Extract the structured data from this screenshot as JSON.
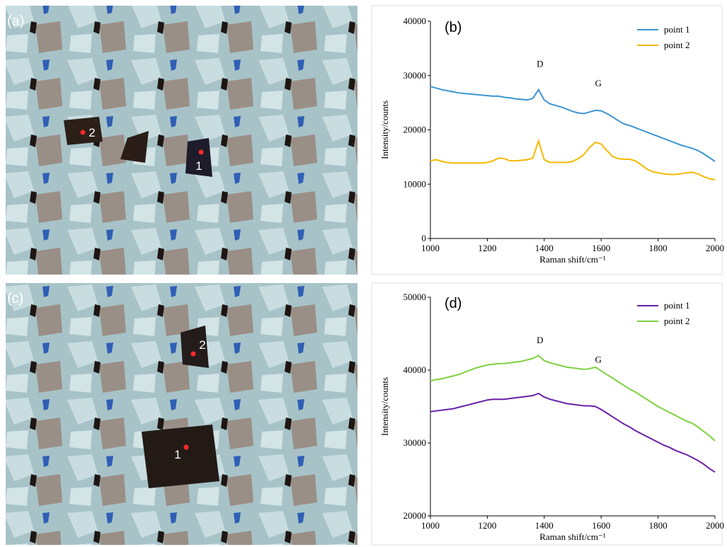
{
  "images": [
    {
      "label": "(a)",
      "points": [
        "1",
        "2"
      ]
    },
    {
      "label": "(c)",
      "points": [
        "1",
        "2"
      ]
    }
  ],
  "chart_data": [
    {
      "type": "line",
      "panel": "(b)",
      "xlabel": "Raman shift/cm⁻¹",
      "ylabel": "Intensity/counts",
      "annotations": [
        "D",
        "G"
      ],
      "legend": "upper right",
      "xlim": [
        1000,
        2000
      ],
      "xticks": [
        1000,
        1200,
        1400,
        1600,
        1800,
        2000
      ],
      "ylim": [
        0,
        40000
      ],
      "yticks": [
        0,
        10000,
        20000,
        30000,
        40000
      ],
      "x": [
        1000,
        1020,
        1040,
        1060,
        1080,
        1100,
        1120,
        1140,
        1160,
        1180,
        1200,
        1220,
        1240,
        1260,
        1280,
        1300,
        1320,
        1340,
        1360,
        1380,
        1400,
        1420,
        1440,
        1460,
        1480,
        1500,
        1520,
        1540,
        1560,
        1580,
        1600,
        1620,
        1640,
        1660,
        1680,
        1700,
        1720,
        1740,
        1760,
        1780,
        1800,
        1820,
        1840,
        1860,
        1880,
        1900,
        1920,
        1940,
        1960,
        1980,
        2000
      ],
      "series": [
        {
          "name": "point 1",
          "color": "#3d95d0",
          "values": [
            28000,
            27700,
            27400,
            27200,
            27000,
            26800,
            26700,
            26600,
            26500,
            26400,
            26300,
            26200,
            26200,
            26000,
            25900,
            25700,
            25600,
            25500,
            25800,
            27400,
            25500,
            24800,
            24500,
            24200,
            23800,
            23400,
            23100,
            23000,
            23300,
            23600,
            23500,
            23000,
            22400,
            21700,
            21100,
            20800,
            20400,
            20000,
            19600,
            19200,
            18800,
            18400,
            18000,
            17600,
            17200,
            16900,
            16600,
            16200,
            15600,
            14900,
            14200
          ]
        },
        {
          "name": "point 2",
          "color": "#f5b800",
          "values": [
            14300,
            14500,
            14200,
            14000,
            13900,
            13900,
            13900,
            13900,
            13900,
            13900,
            14000,
            14300,
            14800,
            14700,
            14300,
            14300,
            14400,
            14500,
            14800,
            18000,
            14500,
            14000,
            14000,
            14000,
            14000,
            14200,
            14700,
            15500,
            16800,
            17700,
            17400,
            16200,
            15100,
            14700,
            14600,
            14600,
            14300,
            13600,
            12800,
            12300,
            12100,
            11900,
            11800,
            11800,
            11900,
            12100,
            12200,
            11900,
            11400,
            11000,
            10800
          ]
        }
      ]
    },
    {
      "type": "line",
      "panel": "(d)",
      "xlabel": "Raman shift/cm⁻¹",
      "ylabel": "Intensity/counts",
      "annotations": [
        "D",
        "G"
      ],
      "legend": "upper right",
      "xlim": [
        1000,
        2000
      ],
      "xticks": [
        1000,
        1200,
        1400,
        1600,
        1800,
        2000
      ],
      "ylim": [
        20000,
        50000
      ],
      "yticks": [
        20000,
        30000,
        40000,
        50000
      ],
      "x": [
        1000,
        1020,
        1040,
        1060,
        1080,
        1100,
        1120,
        1140,
        1160,
        1180,
        1200,
        1220,
        1240,
        1260,
        1280,
        1300,
        1320,
        1340,
        1360,
        1380,
        1400,
        1420,
        1440,
        1460,
        1480,
        1500,
        1520,
        1540,
        1560,
        1580,
        1600,
        1620,
        1640,
        1660,
        1680,
        1700,
        1720,
        1740,
        1760,
        1780,
        1800,
        1820,
        1840,
        1860,
        1880,
        1900,
        1920,
        1940,
        1960,
        1980,
        2000
      ],
      "series": [
        {
          "name": "point 1",
          "color": "#6a1fa8",
          "values": [
            34300,
            34400,
            34500,
            34600,
            34700,
            34900,
            35100,
            35300,
            35500,
            35700,
            35900,
            36000,
            36000,
            36000,
            36100,
            36200,
            36300,
            36400,
            36500,
            36800,
            36300,
            36000,
            35800,
            35600,
            35400,
            35300,
            35200,
            35100,
            35100,
            35000,
            34600,
            34100,
            33600,
            33100,
            32600,
            32200,
            31700,
            31300,
            30900,
            30500,
            30100,
            29700,
            29400,
            29000,
            28700,
            28400,
            28000,
            27600,
            27100,
            26500,
            26000
          ]
        },
        {
          "name": "point 2",
          "color": "#7ed13f",
          "values": [
            38500,
            38700,
            38800,
            39000,
            39200,
            39400,
            39700,
            40000,
            40300,
            40500,
            40700,
            40800,
            40900,
            40900,
            41000,
            41100,
            41200,
            41400,
            41600,
            42000,
            41300,
            41000,
            40800,
            40600,
            40400,
            40300,
            40200,
            40100,
            40200,
            40400,
            39900,
            39400,
            38900,
            38400,
            37900,
            37400,
            37000,
            36500,
            36000,
            35500,
            35000,
            34600,
            34200,
            33800,
            33400,
            33000,
            32700,
            32200,
            31600,
            31000,
            30300
          ]
        }
      ]
    }
  ]
}
